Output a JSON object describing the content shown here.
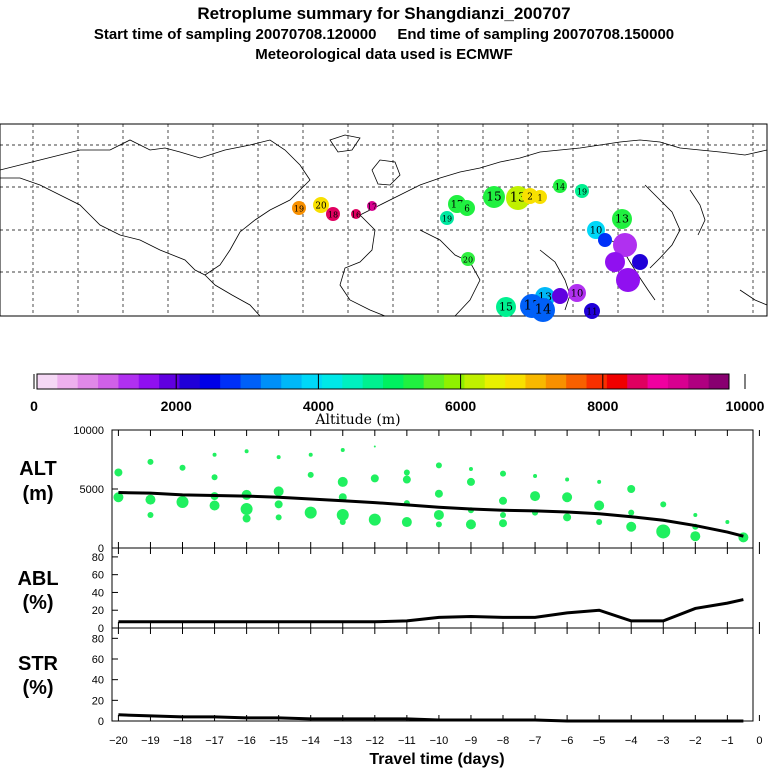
{
  "header": {
    "title": "Retroplume summary for Shangdianzi_200707",
    "line2": "Start time of sampling 20070708.120000     End time of sampling 20070708.150000",
    "line3": "Meteorological data used is ECMWF"
  },
  "colorbar": {
    "label": "Altitude (m)",
    "ticks": [
      "0",
      "2000",
      "4000",
      "6000",
      "8000",
      "10000"
    ],
    "colors": [
      "#f5d8f5",
      "#eeb0ee",
      "#e088e8",
      "#d060e8",
      "#b030f0",
      "#9010f0",
      "#6000e0",
      "#2000d8",
      "#0000e8",
      "#0030f8",
      "#0060f8",
      "#0090f8",
      "#00b8f8",
      "#00d8f8",
      "#00e8e8",
      "#00f0c0",
      "#00f090",
      "#00f060",
      "#20f040",
      "#60f020",
      "#90f000",
      "#c0f000",
      "#e8f000",
      "#f8e000",
      "#f8b800",
      "#f89000",
      "#f86000",
      "#f83000",
      "#f00000",
      "#e00060",
      "#f000a0",
      "#d80090",
      "#b00080",
      "#880070"
    ]
  },
  "map": {
    "labels": [
      {
        "t": "19",
        "c": "#f89000"
      },
      {
        "t": "20",
        "c": "#f8e000"
      },
      {
        "t": "18",
        "c": "#e00060"
      },
      {
        "t": "16",
        "c": "#e00060"
      },
      {
        "t": "17",
        "c": "#d80090"
      },
      {
        "t": "19",
        "c": "#00e8a0"
      },
      {
        "t": "17",
        "c": "#20f040"
      },
      {
        "t": "6",
        "c": "#20f040"
      },
      {
        "t": "15",
        "c": "#20f040"
      },
      {
        "t": "13",
        "c": "#c0f000"
      },
      {
        "t": "2",
        "c": "#f8e000"
      },
      {
        "t": "1",
        "c": "#f8e000"
      },
      {
        "t": "14",
        "c": "#20f040"
      },
      {
        "t": "19",
        "c": "#00f090"
      },
      {
        "t": "20",
        "c": "#30f040"
      },
      {
        "t": "10",
        "c": "#00d8f8"
      },
      {
        "t": "13",
        "c": "#00b8f8"
      },
      {
        "t": "11",
        "c": "#2000d8"
      },
      {
        "t": "10",
        "c": "#b030f0"
      },
      {
        "t": "15",
        "c": "#0060f8"
      },
      {
        "t": "14",
        "c": "#0060f8"
      },
      {
        "t": "15",
        "c": "#00f090"
      },
      {
        "t": "13",
        "c": "#20f040"
      }
    ]
  },
  "chart_data": [
    {
      "type": "scatter",
      "panel": "ALT",
      "ylabel": "ALT\n(m)",
      "ylim": [
        0,
        10000
      ],
      "yticks": [
        "10000",
        "5000",
        "0"
      ],
      "xlim": [
        -20.2,
        -0.2
      ],
      "mean_line": {
        "x": [
          -20,
          -19,
          -18,
          -17,
          -16,
          -15,
          -14,
          -13,
          -12,
          -11,
          -10,
          -9,
          -8,
          -7,
          -6,
          -5,
          -4,
          -3,
          -2,
          -1,
          -0.5
        ],
        "y": [
          4700,
          4650,
          4500,
          4450,
          4400,
          4300,
          4150,
          4000,
          3850,
          3650,
          3450,
          3300,
          3200,
          3150,
          3050,
          2900,
          2650,
          2350,
          1900,
          1350,
          1000
        ]
      },
      "points": [
        {
          "x": -20,
          "y": 6400,
          "s": 4
        },
        {
          "x": -20,
          "y": 4300,
          "s": 5
        },
        {
          "x": -19,
          "y": 7300,
          "s": 3
        },
        {
          "x": -19,
          "y": 4100,
          "s": 5
        },
        {
          "x": -19,
          "y": 2800,
          "s": 3
        },
        {
          "x": -18,
          "y": 6800,
          "s": 3
        },
        {
          "x": -18,
          "y": 3900,
          "s": 6
        },
        {
          "x": -17,
          "y": 7900,
          "s": 2
        },
        {
          "x": -17,
          "y": 6000,
          "s": 3
        },
        {
          "x": -17,
          "y": 4400,
          "s": 4
        },
        {
          "x": -17,
          "y": 3600,
          "s": 5
        },
        {
          "x": -16,
          "y": 8200,
          "s": 2
        },
        {
          "x": -16,
          "y": 4500,
          "s": 5
        },
        {
          "x": -16,
          "y": 3300,
          "s": 6
        },
        {
          "x": -16,
          "y": 2500,
          "s": 4
        },
        {
          "x": -15,
          "y": 7700,
          "s": 2
        },
        {
          "x": -15,
          "y": 4800,
          "s": 5
        },
        {
          "x": -15,
          "y": 3700,
          "s": 4
        },
        {
          "x": -15,
          "y": 2600,
          "s": 3
        },
        {
          "x": -14,
          "y": 7900,
          "s": 2
        },
        {
          "x": -14,
          "y": 6200,
          "s": 3
        },
        {
          "x": -14,
          "y": 3000,
          "s": 6
        },
        {
          "x": -13,
          "y": 8300,
          "s": 2
        },
        {
          "x": -13,
          "y": 5600,
          "s": 5
        },
        {
          "x": -13,
          "y": 4300,
          "s": 4
        },
        {
          "x": -13,
          "y": 2800,
          "s": 6
        },
        {
          "x": -13,
          "y": 2200,
          "s": 3
        },
        {
          "x": -12,
          "y": 8600,
          "s": 1
        },
        {
          "x": -12,
          "y": 5900,
          "s": 4
        },
        {
          "x": -12,
          "y": 2400,
          "s": 6
        },
        {
          "x": -11,
          "y": 6400,
          "s": 3
        },
        {
          "x": -11,
          "y": 5800,
          "s": 4
        },
        {
          "x": -11,
          "y": 3800,
          "s": 3
        },
        {
          "x": -11,
          "y": 2200,
          "s": 5
        },
        {
          "x": -10,
          "y": 7000,
          "s": 3
        },
        {
          "x": -10,
          "y": 4600,
          "s": 4
        },
        {
          "x": -10,
          "y": 2800,
          "s": 5
        },
        {
          "x": -10,
          "y": 2000,
          "s": 3
        },
        {
          "x": -9,
          "y": 6700,
          "s": 2
        },
        {
          "x": -9,
          "y": 5600,
          "s": 4
        },
        {
          "x": -9,
          "y": 3200,
          "s": 3
        },
        {
          "x": -9,
          "y": 2000,
          "s": 5
        },
        {
          "x": -8,
          "y": 6300,
          "s": 3
        },
        {
          "x": -8,
          "y": 4000,
          "s": 4
        },
        {
          "x": -8,
          "y": 2800,
          "s": 3
        },
        {
          "x": -8,
          "y": 2100,
          "s": 4
        },
        {
          "x": -7,
          "y": 6100,
          "s": 2
        },
        {
          "x": -7,
          "y": 4400,
          "s": 5
        },
        {
          "x": -7,
          "y": 3000,
          "s": 3
        },
        {
          "x": -6,
          "y": 5800,
          "s": 2
        },
        {
          "x": -6,
          "y": 4300,
          "s": 5
        },
        {
          "x": -6,
          "y": 2600,
          "s": 4
        },
        {
          "x": -5,
          "y": 5600,
          "s": 2
        },
        {
          "x": -5,
          "y": 3600,
          "s": 5
        },
        {
          "x": -5,
          "y": 2200,
          "s": 3
        },
        {
          "x": -4,
          "y": 5000,
          "s": 4
        },
        {
          "x": -4,
          "y": 3000,
          "s": 3
        },
        {
          "x": -4,
          "y": 1800,
          "s": 5
        },
        {
          "x": -3,
          "y": 3700,
          "s": 3
        },
        {
          "x": -3,
          "y": 1400,
          "s": 7
        },
        {
          "x": -2,
          "y": 2800,
          "s": 2
        },
        {
          "x": -2,
          "y": 1800,
          "s": 3
        },
        {
          "x": -2,
          "y": 1000,
          "s": 5
        },
        {
          "x": -1,
          "y": 2200,
          "s": 2
        },
        {
          "x": -0.5,
          "y": 900,
          "s": 5
        }
      ]
    },
    {
      "type": "line",
      "panel": "ABL",
      "ylabel": "ABL\n(%)",
      "ylim": [
        0,
        90
      ],
      "yticks": [
        "80",
        "60",
        "40",
        "20",
        "0"
      ],
      "x": [
        -20,
        -19,
        -18,
        -17,
        -16,
        -15,
        -14,
        -13,
        -12,
        -11,
        -10,
        -9,
        -8,
        -7,
        -6,
        -5,
        -4,
        -3,
        -2,
        -1,
        -0.5
      ],
      "y": [
        7,
        7,
        7,
        7,
        7,
        7,
        7,
        7,
        7,
        8,
        12,
        13,
        12,
        12,
        17,
        20,
        8,
        8,
        22,
        28,
        32
      ]
    },
    {
      "type": "line",
      "panel": "STR",
      "ylabel": "STR\n(%)",
      "ylim": [
        0,
        90
      ],
      "yticks": [
        "80",
        "60",
        "40",
        "20",
        "0"
      ],
      "xlabel": "Travel time (days)",
      "xticks": [
        "−20",
        "−19",
        "−18",
        "−17",
        "−16",
        "−15",
        "−14",
        "−13",
        "−12",
        "−11",
        "−10",
        "−9",
        "−8",
        "−7",
        "−6",
        "−5",
        "−4",
        "−3",
        "−2",
        "−1",
        "0"
      ],
      "x": [
        -20,
        -19,
        -18,
        -17,
        -16,
        -15,
        -14,
        -13,
        -12,
        -11,
        -10,
        -9,
        -8,
        -7,
        -6,
        -5,
        -4,
        -3,
        -2,
        -1,
        -0.5
      ],
      "y": [
        6,
        5,
        4,
        4,
        3,
        3,
        2,
        2,
        2,
        2,
        1,
        1,
        1,
        1,
        0,
        0,
        0,
        0,
        0,
        0,
        0
      ]
    }
  ]
}
